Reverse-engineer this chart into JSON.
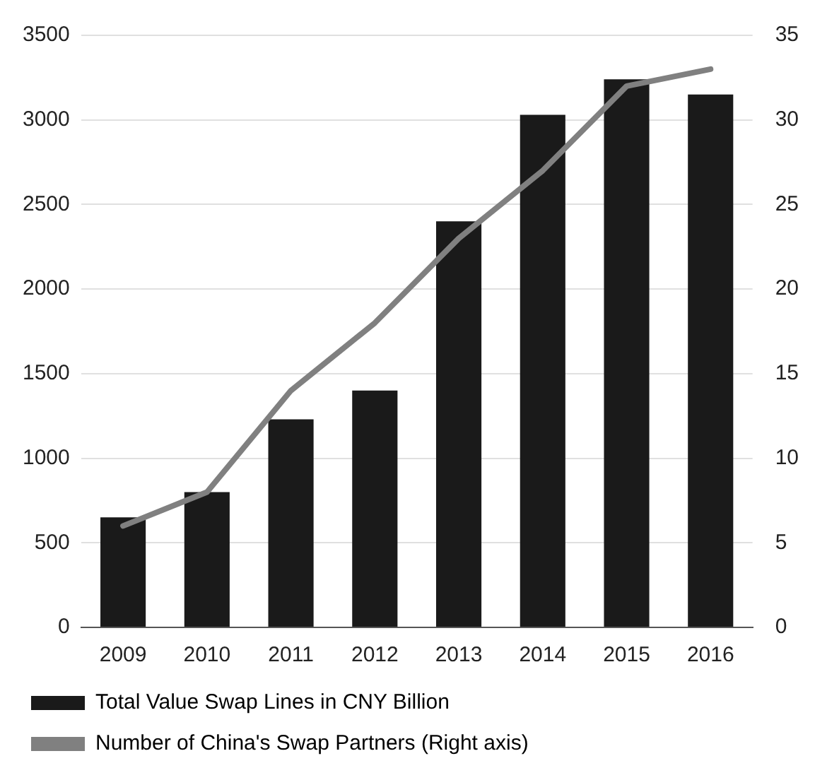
{
  "chart_data": {
    "type": "bar",
    "categories": [
      "2009",
      "2010",
      "2011",
      "2012",
      "2013",
      "2014",
      "2015",
      "2016"
    ],
    "series": [
      {
        "name": "Total Value Swap Lines in CNY Billion",
        "color": "#1a1a1a",
        "values": [
          650,
          800,
          1230,
          1400,
          2400,
          3030,
          3240,
          3150
        ]
      },
      {
        "name": "Number of China's Swap Partners (Right axis)",
        "type": "line",
        "axis": "y2",
        "color": "#808080",
        "values": [
          6,
          8,
          14,
          18,
          23,
          27,
          32,
          33
        ]
      }
    ],
    "ylim": [
      0,
      3500
    ],
    "yticks": [
      0,
      500,
      1000,
      1500,
      2000,
      2500,
      3000,
      3500
    ],
    "y2lim": [
      0,
      35
    ],
    "y2ticks": [
      0,
      5,
      10,
      15,
      20,
      25,
      30,
      35
    ],
    "grid": "y",
    "legend": "bottom",
    "marker": "none",
    "line_style": "solid"
  }
}
